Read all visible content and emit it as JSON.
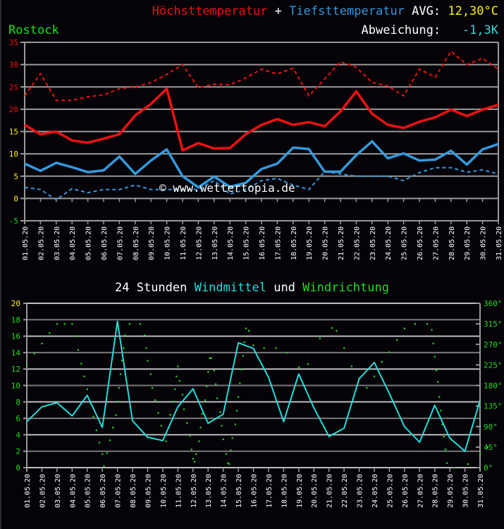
{
  "header": {
    "tmax_label": "Höchsttemperatur",
    "plus": " + ",
    "tmin_label": "Tiefsttemperatur",
    "avg_label": " AVG: ",
    "avg_value": "12,30°C",
    "location": "Rostock",
    "deviation_label": "Abweichung:   ",
    "deviation_value": "-1,3K"
  },
  "wind_title": {
    "prefix": "24 Stunden ",
    "wind_label": "Windmittel",
    "middle": " und ",
    "dir_label": "Windrichtung"
  },
  "watermark": "© www.wettertopia.de",
  "colors": {
    "background": "#050308",
    "tmax": "#ee1111",
    "tmin": "#3399dd",
    "avg": "#ffee22",
    "deviation": "#33dddd",
    "location": "#22dd22",
    "wind": "#22dddd",
    "direction": "#22dd22",
    "grid": "#9a9a9a"
  },
  "chart_data": [
    {
      "type": "line",
      "title": "Höchsttemperatur + Tiefsttemperatur",
      "xlabel": "",
      "ylabel": "°C",
      "ylim": [
        -5,
        35
      ],
      "yticks": [
        35,
        30,
        25,
        20,
        15,
        10,
        5,
        0,
        -5
      ],
      "grid": true,
      "categories": [
        "01.05.20",
        "02.05.20",
        "03.05.20",
        "04.05.20",
        "05.05.20",
        "06.05.20",
        "07.05.20",
        "08.05.20",
        "09.05.20",
        "10.05.20",
        "11.05.20",
        "12.05.20",
        "13.05.20",
        "14.05.20",
        "15.05.20",
        "16.05.20",
        "17.05.20",
        "18.05.20",
        "19.05.20",
        "20.05.20",
        "21.05.20",
        "22.05.20",
        "23.05.20",
        "24.05.20",
        "25.05.20",
        "26.05.20",
        "27.05.20",
        "28.05.20",
        "29.05.20",
        "30.05.20",
        "31.05.20"
      ],
      "series": [
        {
          "name": "Höchsttemperatur",
          "style": "solid",
          "color": "#ee1111",
          "values": [
            16.5,
            14.4,
            15.0,
            13.0,
            12.5,
            13.4,
            14.4,
            18.6,
            21.2,
            24.6,
            10.8,
            12.4,
            11.2,
            11.3,
            14.4,
            16.5,
            17.8,
            16.5,
            17.1,
            16.2,
            19.5,
            24.0,
            19.0,
            16.5,
            15.8,
            17.2,
            18.2,
            19.9,
            18.5,
            19.9,
            21.0
          ]
        },
        {
          "name": "Höchsttemperatur (Rekord/Vergleich)",
          "style": "dashed",
          "color": "#ee1111",
          "values": [
            23.0,
            28.0,
            22.0,
            22.0,
            22.8,
            23.2,
            24.6,
            25.0,
            26.0,
            27.8,
            30.0,
            24.8,
            25.6,
            25.5,
            27.0,
            29.0,
            27.9,
            29.2,
            23.0,
            26.8,
            30.6,
            29.4,
            26.0,
            25.2,
            23.0,
            29.0,
            27.2,
            33.0,
            30.0,
            31.4,
            29.0
          ]
        },
        {
          "name": "Tiefsttemperatur",
          "style": "solid",
          "color": "#3399dd",
          "values": [
            7.8,
            6.2,
            8.0,
            7.0,
            5.9,
            6.3,
            9.4,
            5.5,
            8.5,
            11.0,
            5.0,
            2.5,
            4.9,
            2.6,
            3.5,
            6.6,
            7.8,
            11.4,
            11.1,
            6.0,
            6.0,
            9.7,
            12.8,
            9.0,
            10.1,
            8.5,
            8.7,
            10.7,
            7.6,
            11.0,
            12.2
          ]
        },
        {
          "name": "Tiefsttemperatur (Rekord/Vergleich)",
          "style": "dashed",
          "color": "#3399dd",
          "values": [
            2.5,
            2.0,
            -0.3,
            2.2,
            1.3,
            2.0,
            2.0,
            3.0,
            2.0,
            2.0,
            2.0,
            2.0,
            4.0,
            1.0,
            2.0,
            4.0,
            4.5,
            3.0,
            2.0,
            6.0,
            5.5,
            5.0,
            5.0,
            5.0,
            4.0,
            5.8,
            6.9,
            6.9,
            5.9,
            6.4,
            5.5
          ]
        }
      ]
    },
    {
      "type": "line",
      "title": "24 Stunden Windmittel und Windrichtung",
      "xlabel": "",
      "ylabel": "Windmittel",
      "ylabel_right": "Windrichtung",
      "ylim": [
        0,
        20
      ],
      "yticks": [
        20,
        18,
        16,
        14,
        12,
        10,
        8,
        6,
        4,
        2,
        0
      ],
      "ylim_right": [
        0,
        360
      ],
      "yticks_right": [
        "360°",
        "315°",
        "270°",
        "225°",
        "180°",
        "135°",
        "90°",
        "45°",
        "0°"
      ],
      "grid": true,
      "categories": [
        "01.05.20",
        "02.05.20",
        "03.05.20",
        "04.05.20",
        "05.05.20",
        "06.05.20",
        "07.05.20",
        "08.05.20",
        "09.05.20",
        "10.05.20",
        "11.05.20",
        "12.05.20",
        "13.05.20",
        "14.05.20",
        "15.05.20",
        "16.05.20",
        "17.05.20",
        "18.05.20",
        "19.05.20",
        "20.05.20",
        "21.05.20",
        "22.05.20",
        "23.05.20",
        "24.05.20",
        "25.05.20",
        "26.05.20",
        "27.05.20",
        "28.05.20",
        "29.05.20",
        "30.05.20",
        "31.05.20"
      ],
      "series": [
        {
          "name": "Windmittel",
          "style": "solid",
          "color": "#22dddd",
          "values": [
            5.6,
            7.4,
            7.9,
            6.3,
            8.8,
            4.9,
            17.8,
            5.7,
            3.7,
            3.3,
            7.4,
            9.6,
            5.4,
            6.5,
            15.2,
            14.5,
            11.0,
            5.6,
            11.4,
            7.3,
            3.8,
            4.8,
            10.8,
            12.8,
            9.0,
            5.0,
            3.1,
            7.6,
            3.6,
            2.0,
            8.2
          ]
        },
        {
          "name": "Windrichtung",
          "style": "dots",
          "color": "#22dd22",
          "unit": "deg",
          "points": [
            [
              0.0,
              225
            ],
            [
              0.5,
              250
            ],
            [
              1.0,
              272
            ],
            [
              1.5,
              295
            ],
            [
              2.0,
              315
            ],
            [
              2.5,
              315
            ],
            [
              3.0,
              315
            ],
            [
              3.2,
              288
            ],
            [
              3.4,
              258
            ],
            [
              3.6,
              228
            ],
            [
              3.8,
              200
            ],
            [
              4.0,
              172
            ],
            [
              4.2,
              142
            ],
            [
              4.4,
              112
            ],
            [
              4.6,
              82
            ],
            [
              4.8,
              55
            ],
            [
              5.0,
              30
            ],
            [
              5.1,
              3
            ],
            [
              5.3,
              32
            ],
            [
              5.5,
              60
            ],
            [
              5.7,
              88
            ],
            [
              5.9,
              115
            ],
            [
              6.0,
              145
            ],
            [
              6.1,
              175
            ],
            [
              6.2,
              205
            ],
            [
              6.3,
              235
            ],
            [
              6.4,
              262
            ],
            [
              6.5,
              290
            ],
            [
              6.8,
              315
            ],
            [
              7.5,
              315
            ],
            [
              7.8,
              290
            ],
            [
              7.9,
              262
            ],
            [
              8.0,
              234
            ],
            [
              8.2,
              205
            ],
            [
              8.3,
              175
            ],
            [
              8.5,
              148
            ],
            [
              8.7,
              120
            ],
            [
              8.9,
              92
            ],
            [
              9.0,
              60
            ],
            [
              9.2,
              58
            ],
            [
              9.4,
              88
            ],
            [
              9.5,
              116
            ],
            [
              9.7,
              145
            ],
            [
              9.8,
              172
            ],
            [
              9.9,
              200
            ],
            [
              10.0,
              222
            ],
            [
              10.1,
              190
            ],
            [
              10.3,
              160
            ],
            [
              10.4,
              128
            ],
            [
              10.6,
              98
            ],
            [
              10.8,
              70
            ],
            [
              10.9,
              40
            ],
            [
              11.0,
              20
            ],
            [
              11.1,
              13
            ],
            [
              11.2,
              30
            ],
            [
              11.4,
              58
            ],
            [
              11.5,
              88
            ],
            [
              11.6,
              118
            ],
            [
              11.8,
              148
            ],
            [
              11.9,
              178
            ],
            [
              12.0,
              210
            ],
            [
              12.1,
              240
            ],
            [
              12.2,
              240
            ],
            [
              12.4,
              213
            ],
            [
              12.5,
              183
            ],
            [
              12.6,
              152
            ],
            [
              12.8,
              122
            ],
            [
              12.9,
              92
            ],
            [
              13.0,
              62
            ],
            [
              13.2,
              30
            ],
            [
              13.3,
              10
            ],
            [
              13.4,
              8
            ],
            [
              13.5,
              38
            ],
            [
              13.6,
              65
            ],
            [
              13.8,
              95
            ],
            [
              13.9,
              125
            ],
            [
              14.0,
              155
            ],
            [
              14.1,
              185
            ],
            [
              14.2,
              215
            ],
            [
              14.3,
              245
            ],
            [
              14.4,
              275
            ],
            [
              14.5,
              305
            ],
            [
              14.7,
              300
            ],
            [
              15.0,
              268
            ],
            [
              15.7,
              262
            ],
            [
              16.5,
              262
            ],
            [
              17.2,
              252
            ],
            [
              18.0,
              220
            ],
            [
              18.6,
              227
            ],
            [
              19.4,
              283
            ],
            [
              20.2,
              306
            ],
            [
              20.5,
              300
            ],
            [
              21.0,
              262
            ],
            [
              21.5,
              222
            ],
            [
              22.0,
              196
            ],
            [
              22.5,
              175
            ],
            [
              23.0,
              200
            ],
            [
              23.5,
              232
            ],
            [
              24.0,
              253
            ],
            [
              24.5,
              280
            ],
            [
              25.0,
              305
            ],
            [
              25.7,
              315
            ],
            [
              26.5,
              315
            ],
            [
              26.8,
              302
            ],
            [
              26.9,
              272
            ],
            [
              27.0,
              243
            ],
            [
              27.1,
              213
            ],
            [
              27.2,
              188
            ],
            [
              27.3,
              155
            ],
            [
              27.4,
              125
            ],
            [
              27.5,
              95
            ],
            [
              27.6,
              68
            ],
            [
              27.7,
              40
            ],
            [
              27.8,
              10
            ],
            [
              28.3,
              0
            ],
            [
              29.2,
              8
            ],
            [
              30.0,
              30
            ],
            [
              30.5,
              45
            ]
          ]
        }
      ]
    }
  ]
}
